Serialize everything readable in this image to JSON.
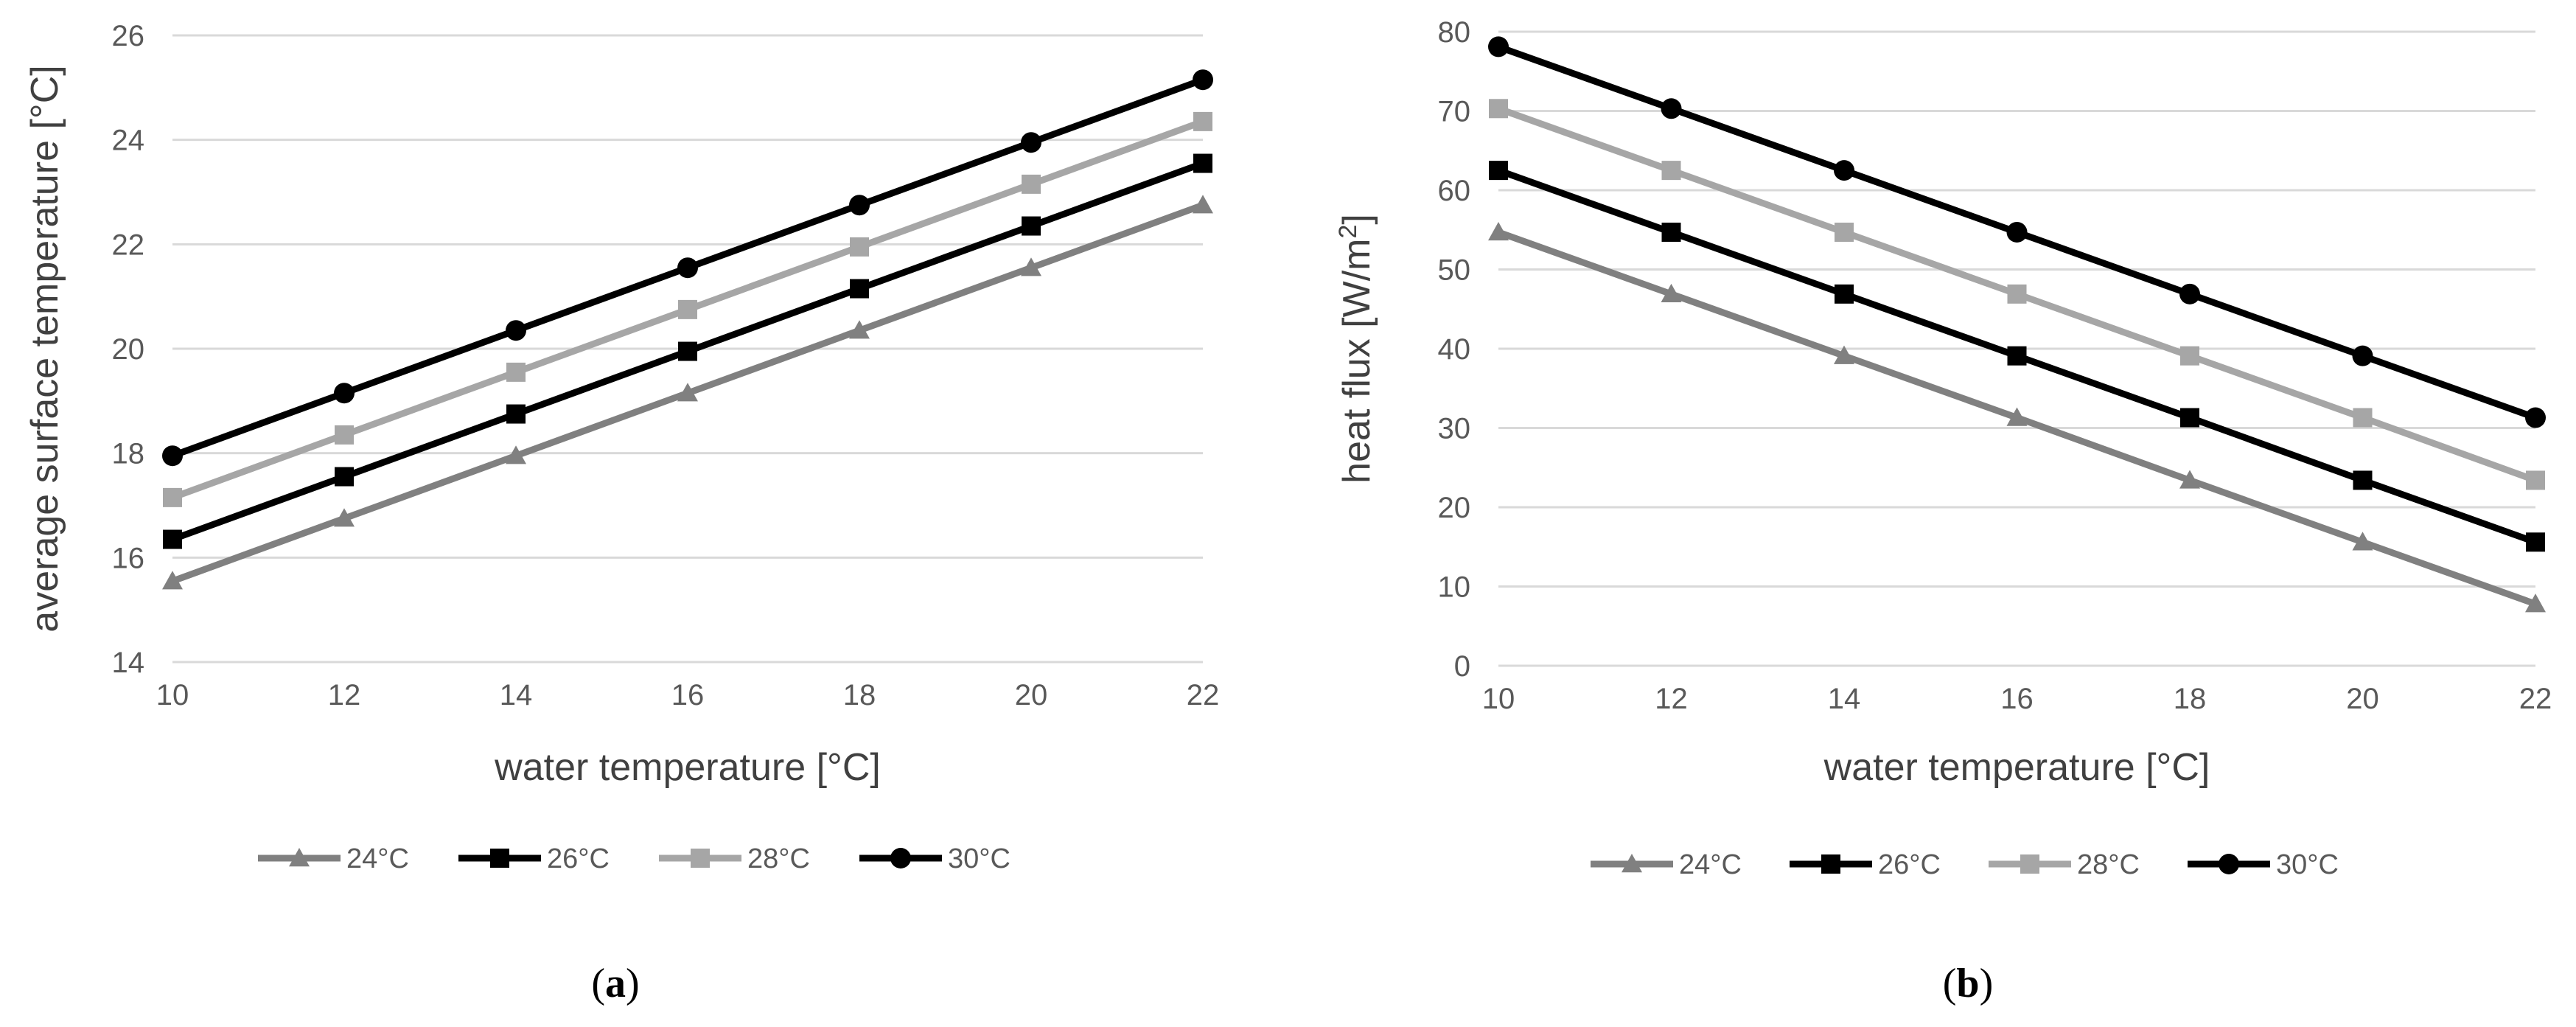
{
  "chart_data": [
    {
      "type": "line",
      "panel_label": "a",
      "xlabel": "water temperature [°C]",
      "ylabel": "average surface temperature [°C]",
      "x": [
        10,
        12,
        14,
        16,
        18,
        20,
        22
      ],
      "xlim": [
        10,
        22
      ],
      "ylim": [
        14,
        26
      ],
      "yticks": [
        14,
        16,
        18,
        20,
        22,
        24,
        26
      ],
      "grid": true,
      "legend_position": "bottom",
      "series": [
        {
          "name": "24°C",
          "color": "#808080",
          "marker": "triangle",
          "values": [
            15.55,
            16.75,
            17.95,
            19.15,
            20.35,
            21.55,
            22.75
          ]
        },
        {
          "name": "26°C",
          "color": "#000000",
          "marker": "square",
          "values": [
            16.35,
            17.55,
            18.75,
            19.95,
            21.15,
            22.35,
            23.55
          ]
        },
        {
          "name": "28°C",
          "color": "#a6a6a6",
          "marker": "square",
          "values": [
            17.15,
            18.35,
            19.55,
            20.75,
            21.95,
            23.15,
            24.35
          ]
        },
        {
          "name": "30°C",
          "color": "#000000",
          "marker": "circle",
          "values": [
            17.95,
            19.15,
            20.35,
            21.55,
            22.75,
            23.95,
            25.15
          ]
        }
      ]
    },
    {
      "type": "line",
      "panel_label": "b",
      "xlabel": "water temperature [°C]",
      "ylabel_main": "heat flux [W/m",
      "ylabel_sup": "2",
      "ylabel_end": "]",
      "x": [
        10,
        12,
        14,
        16,
        18,
        20,
        22
      ],
      "xlim": [
        10,
        22
      ],
      "ylim": [
        0,
        80
      ],
      "yticks": [
        0,
        10,
        20,
        30,
        40,
        50,
        60,
        70,
        80
      ],
      "grid": true,
      "legend_position": "bottom",
      "series": [
        {
          "name": "24°C",
          "color": "#808080",
          "marker": "triangle",
          "values": [
            54.7,
            46.9,
            39.1,
            31.3,
            23.4,
            15.6,
            7.8
          ]
        },
        {
          "name": "26°C",
          "color": "#000000",
          "marker": "square",
          "values": [
            62.5,
            54.7,
            46.9,
            39.1,
            31.3,
            23.4,
            15.6
          ]
        },
        {
          "name": "28°C",
          "color": "#a6a6a6",
          "marker": "square",
          "values": [
            70.3,
            62.5,
            54.7,
            46.9,
            39.1,
            31.3,
            23.4
          ]
        },
        {
          "name": "30°C",
          "color": "#000000",
          "marker": "circle",
          "values": [
            78.1,
            70.3,
            62.5,
            54.7,
            46.9,
            39.1,
            31.3
          ]
        }
      ]
    }
  ]
}
